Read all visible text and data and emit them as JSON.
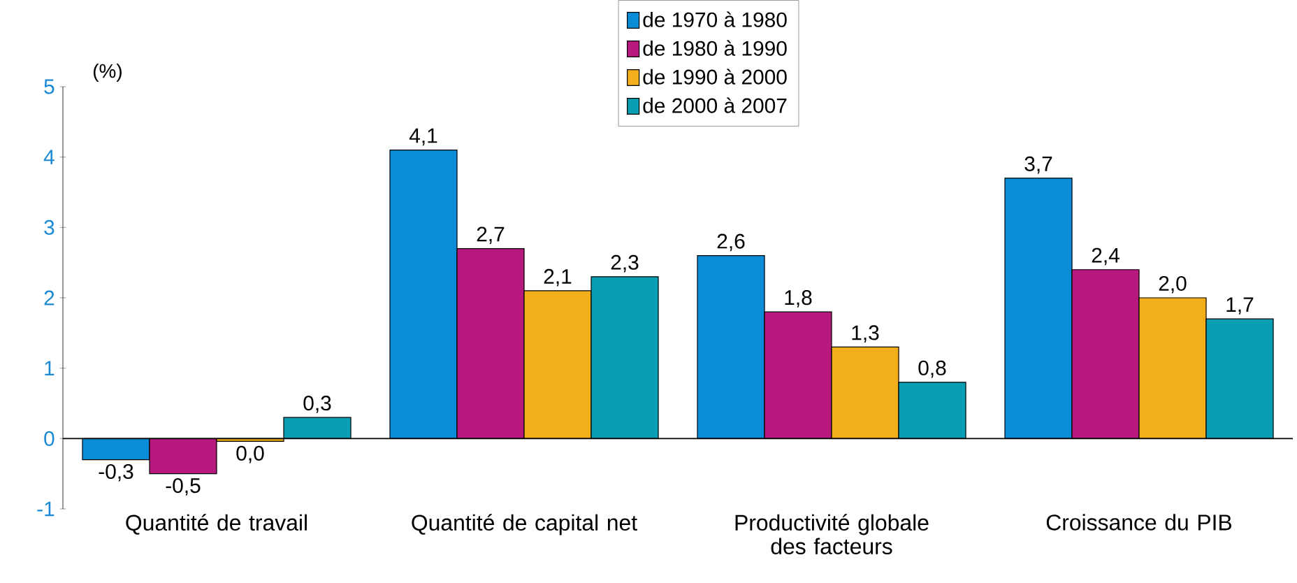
{
  "chart_data": {
    "type": "bar",
    "ylabel": "(%)",
    "categories": [
      "Quantité de travail",
      "Quantité de capital net",
      "Productivité globale des facteurs",
      "Croissance du PIB"
    ],
    "ylim": [
      -1,
      5
    ],
    "yticks": [
      -1,
      0,
      1,
      2,
      3,
      4,
      5
    ],
    "legend": "top",
    "series": [
      {
        "name": "de 1970 à 1980",
        "color": "#0b8cd6",
        "values": [
          -0.3,
          4.1,
          2.6,
          3.7
        ],
        "value_labels": [
          "-0,3",
          "4,1",
          "2,6",
          "3,7"
        ]
      },
      {
        "name": "de 1980 à 1990",
        "color": "#b8197f",
        "values": [
          -0.5,
          2.7,
          1.8,
          2.4
        ],
        "value_labels": [
          "-0,5",
          "2,7",
          "1,8",
          "2,4"
        ]
      },
      {
        "name": "de 1990 à 2000",
        "color": "#f2ae1b",
        "values": [
          -0.04,
          2.1,
          1.3,
          2.0
        ],
        "value_labels": [
          "0,0",
          "2,1",
          "1,3",
          "2,0"
        ]
      },
      {
        "name": "de 2000 à 2007",
        "color": "#0a9eb3",
        "values": [
          0.3,
          2.3,
          0.8,
          1.7
        ],
        "value_labels": [
          "0,3",
          "2,3",
          "0,8",
          "1,7"
        ]
      }
    ]
  }
}
